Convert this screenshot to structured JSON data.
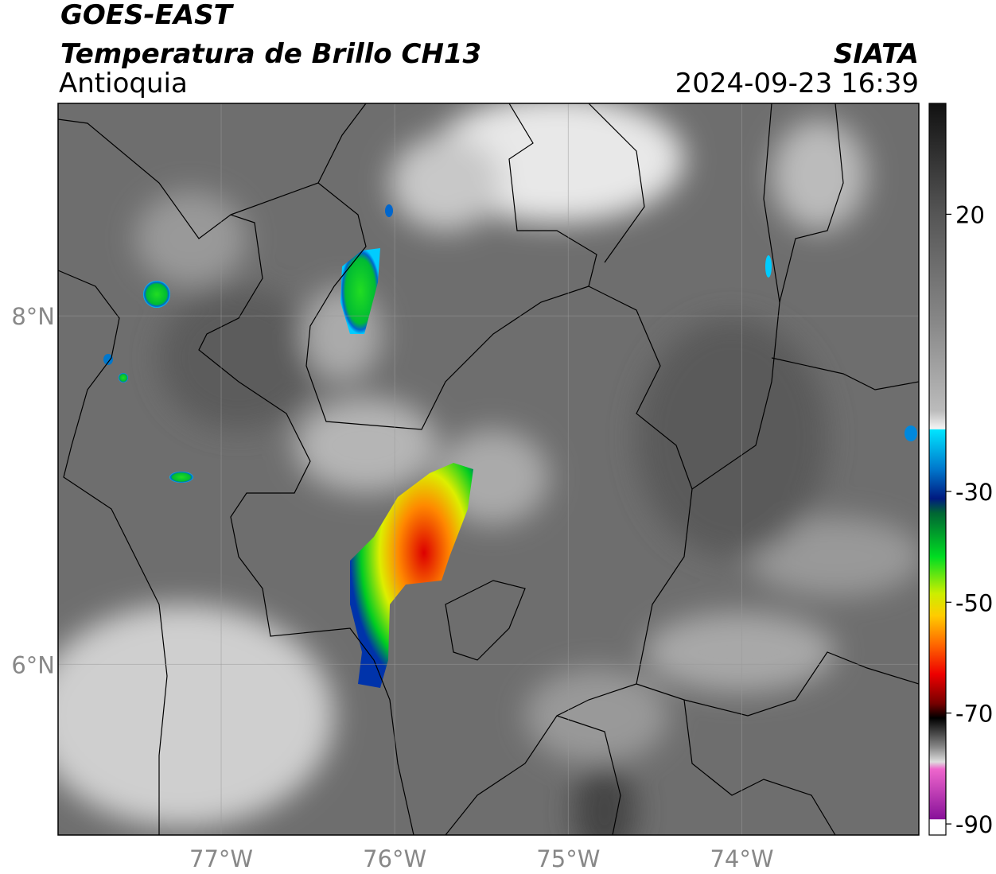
{
  "header": {
    "title": "GOES-EAST",
    "subtitle": "Temperatura de Brillo CH13",
    "region": "Antioquia",
    "source": "SIATA",
    "datetime": "2024-09-23 16:39"
  },
  "map": {
    "xlim": [
      -77.94,
      -72.98
    ],
    "ylim": [
      5.02,
      9.22
    ],
    "xticks": [
      {
        "value": -77,
        "label": "77°W"
      },
      {
        "value": -76,
        "label": "76°W"
      },
      {
        "value": -75,
        "label": "75°W"
      },
      {
        "value": -74,
        "label": "74°W"
      }
    ],
    "yticks": [
      {
        "value": 8,
        "label": "8°N"
      },
      {
        "value": 6,
        "label": "6°N"
      }
    ]
  },
  "colorbar": {
    "lim": [
      -92,
      40
    ],
    "ticks": [
      20,
      -30,
      -50,
      -70,
      -90
    ]
  }
}
